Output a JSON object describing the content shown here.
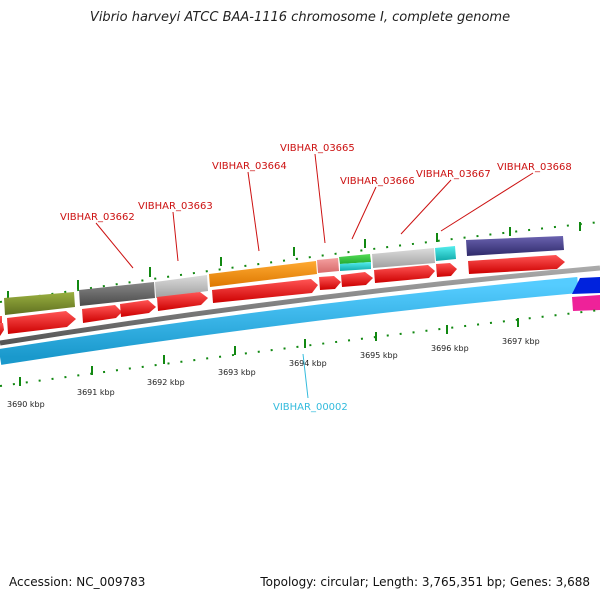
{
  "title": "Vibrio harveyi ATCC BAA-1116 chromosome I, complete genome",
  "footer": {
    "accession": "Accession: NC_009783",
    "topology": "Topology: circular; Length: 3,765,351 bp; Genes: 3,688"
  },
  "colors": {
    "cds_arrow": "#ee1111",
    "plasmid_track": "#33bbee",
    "backbone": "#777777",
    "tick": "#118811",
    "gene_label": "#cc1111",
    "feature_label": "#33bbdd",
    "kbp_label": "#222222"
  },
  "ruler": {
    "labels": [
      "3690 kbp",
      "3691 kbp",
      "3692 kbp",
      "3693 kbp",
      "3694 kbp",
      "3695 kbp",
      "3696 kbp",
      "3697 kbp"
    ]
  },
  "gene_labels": [
    "VIBHAR_03662",
    "VIBHAR_03663",
    "VIBHAR_03664",
    "VIBHAR_03665",
    "VIBHAR_03666",
    "VIBHAR_03667",
    "VIBHAR_03668"
  ],
  "feature_labels": [
    "VIBHAR_00002"
  ],
  "tracks": {
    "cog_blocks": [
      {
        "color": "#7a8f2a"
      },
      {
        "color": "#666666"
      },
      {
        "color": "#bbbbbb"
      },
      {
        "color": "#ee8811"
      },
      {
        "color": "#e88080"
      },
      {
        "color": "#33bb44"
      },
      {
        "color": "#bbbbbb"
      },
      {
        "color": "#22cccc"
      },
      {
        "color": "#443d8a"
      }
    ]
  }
}
